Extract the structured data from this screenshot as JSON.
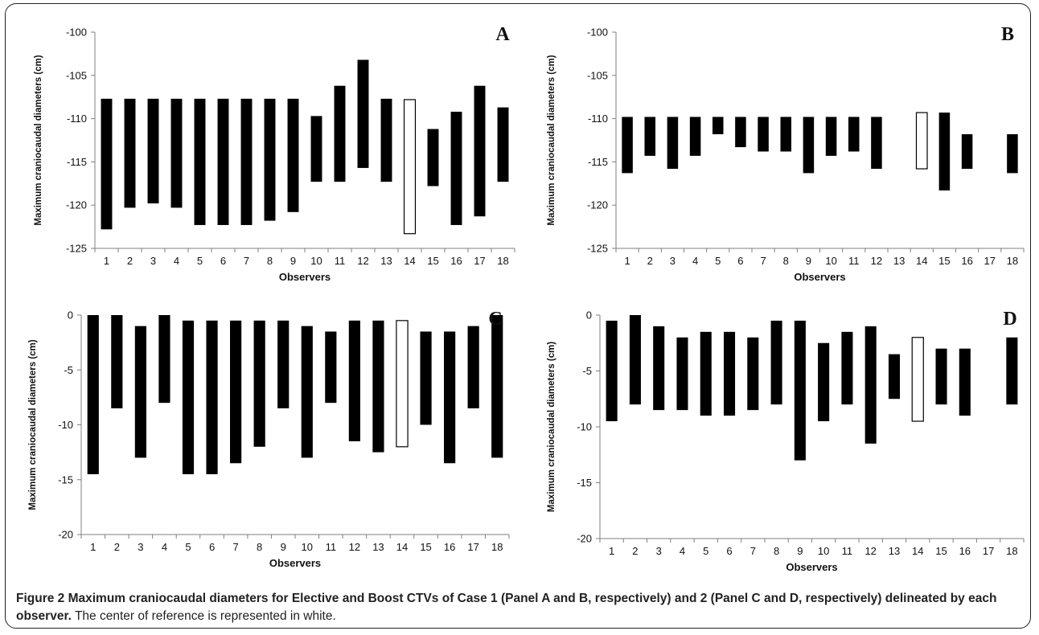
{
  "caption": {
    "title": "Figure 2 Maximum craniocaudal diameters for Elective and Boost CTVs of Case 1 (Panel A and B, respectively) and 2 (Panel C and D, respectively) delineated by each observer.",
    "text": "The center of reference is represented in white."
  },
  "colors": {
    "bar": "#000000",
    "reference_bar": "#ffffff",
    "axis": "#7f7f7f"
  },
  "chart_data": [
    {
      "panel": "A",
      "type": "floating-bar",
      "ylabel": "Maximum craniocaudal diameters (cm)",
      "xlabel": "Observers",
      "ylim": [
        -125,
        -100
      ],
      "yticks": [
        -100,
        -105,
        -110,
        -115,
        -120,
        -125
      ],
      "categories": [
        "1",
        "2",
        "3",
        "4",
        "5",
        "6",
        "7",
        "8",
        "9",
        "10",
        "11",
        "12",
        "13",
        "14",
        "15",
        "16",
        "17",
        "18"
      ],
      "reference_category": "14",
      "ranges": [
        [
          -122.8,
          -107.7
        ],
        [
          -120.3,
          -107.7
        ],
        [
          -119.8,
          -107.7
        ],
        [
          -120.3,
          -107.7
        ],
        [
          -122.3,
          -107.7
        ],
        [
          -122.3,
          -107.7
        ],
        [
          -122.3,
          -107.7
        ],
        [
          -121.8,
          -107.7
        ],
        [
          -120.8,
          -107.7
        ],
        [
          -117.3,
          -109.7
        ],
        [
          -117.3,
          -106.2
        ],
        [
          -115.7,
          -103.2
        ],
        [
          -117.3,
          -107.7
        ],
        [
          -123.3,
          -107.8
        ],
        [
          -117.8,
          -111.2
        ],
        [
          -122.3,
          -109.2
        ],
        [
          -121.3,
          -106.2
        ],
        [
          -117.3,
          -108.7
        ]
      ]
    },
    {
      "panel": "B",
      "type": "floating-bar",
      "ylabel": "Maximum craniocaudal diameters (cm)",
      "xlabel": "Observers",
      "ylim": [
        -125,
        -100
      ],
      "yticks": [
        -100,
        -105,
        -110,
        -115,
        -120,
        -125
      ],
      "categories": [
        "1",
        "2",
        "3",
        "4",
        "5",
        "6",
        "7",
        "8",
        "9",
        "10",
        "11",
        "12",
        "13",
        "14",
        "15",
        "16",
        "17",
        "18"
      ],
      "reference_category": "14",
      "ranges": [
        [
          -116.3,
          -109.8
        ],
        [
          -114.3,
          -109.8
        ],
        [
          -115.8,
          -109.8
        ],
        [
          -114.3,
          -109.8
        ],
        [
          -111.8,
          -109.8
        ],
        [
          -113.3,
          -109.8
        ],
        [
          -113.8,
          -109.8
        ],
        [
          -113.8,
          -109.8
        ],
        [
          -116.3,
          -109.8
        ],
        [
          -114.3,
          -109.8
        ],
        [
          -113.8,
          -109.8
        ],
        [
          -115.8,
          -109.8
        ],
        null,
        [
          -115.8,
          -109.3
        ],
        [
          -118.3,
          -109.3
        ],
        [
          -115.8,
          -111.8
        ],
        null,
        [
          -116.3,
          -111.8
        ]
      ]
    },
    {
      "panel": "C",
      "type": "floating-bar",
      "ylabel": "Maximum craniocaudal diameters (cm)",
      "xlabel": "Observers",
      "ylim": [
        -20,
        0
      ],
      "yticks": [
        0,
        -5,
        -10,
        -15,
        -20
      ],
      "categories": [
        "1",
        "2",
        "3",
        "4",
        "5",
        "6",
        "7",
        "8",
        "9",
        "10",
        "11",
        "12",
        "13",
        "14",
        "15",
        "16",
        "17",
        "18"
      ],
      "reference_category": "14",
      "ranges": [
        [
          -14.5,
          0
        ],
        [
          -8.5,
          0
        ],
        [
          -13,
          -1
        ],
        [
          -8,
          0
        ],
        [
          -14.5,
          -0.5
        ],
        [
          -14.5,
          -0.5
        ],
        [
          -13.5,
          -0.5
        ],
        [
          -12,
          -0.5
        ],
        [
          -8.5,
          -0.5
        ],
        [
          -13,
          -1
        ],
        [
          -8,
          -1.5
        ],
        [
          -11.5,
          -0.5
        ],
        [
          -12.5,
          -0.5
        ],
        [
          -12,
          -0.5
        ],
        [
          -10,
          -1.5
        ],
        [
          -13.5,
          -1.5
        ],
        [
          -8.5,
          -1
        ],
        [
          -13,
          0
        ]
      ]
    },
    {
      "panel": "D",
      "type": "floating-bar",
      "ylabel": "Maximum craniocaudal diameters (cm)",
      "xlabel": "Observers",
      "ylim": [
        -20,
        0
      ],
      "yticks": [
        0,
        -5,
        -10,
        -15,
        -20
      ],
      "categories": [
        "1",
        "2",
        "3",
        "4",
        "5",
        "6",
        "7",
        "8",
        "9",
        "10",
        "11",
        "12",
        "13",
        "14",
        "15",
        "16",
        "17",
        "18"
      ],
      "reference_category": "14",
      "ranges": [
        [
          -9.5,
          -0.5
        ],
        [
          -8,
          0
        ],
        [
          -8.5,
          -1
        ],
        [
          -8.5,
          -2
        ],
        [
          -9,
          -1.5
        ],
        [
          -9,
          -1.5
        ],
        [
          -8.5,
          -2
        ],
        [
          -8,
          -0.5
        ],
        [
          -13,
          -0.5
        ],
        [
          -9.5,
          -2.5
        ],
        [
          -8,
          -1.5
        ],
        [
          -11.5,
          -1
        ],
        [
          -7.5,
          -3.5
        ],
        [
          -9.5,
          -2
        ],
        [
          -8,
          -3
        ],
        [
          -9,
          -3
        ],
        null,
        [
          -8,
          -2
        ]
      ]
    }
  ]
}
